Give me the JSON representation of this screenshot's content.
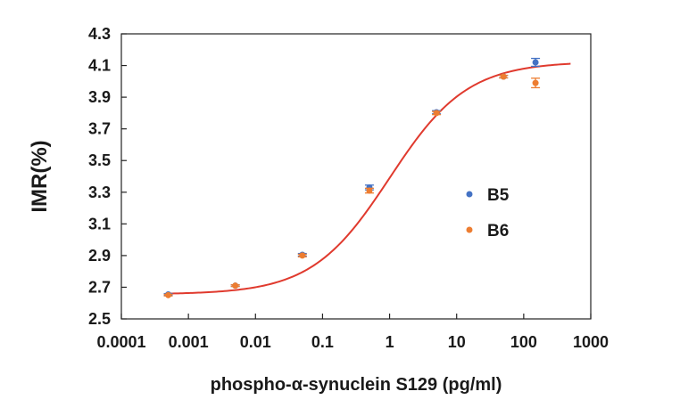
{
  "chart_data": {
    "type": "scatter",
    "title": "",
    "xlabel": "phospho-α-synuclein S129 (pg/ml)",
    "ylabel": "IMR(%)",
    "xscale": "log",
    "xlim": [
      0.0001,
      1000
    ],
    "ylim": [
      2.5,
      4.3
    ],
    "xticks": [
      0.0001,
      0.001,
      0.01,
      0.1,
      1,
      10,
      100,
      1000
    ],
    "xtick_labels": [
      "0.0001",
      "0.001",
      "0.01",
      "0.1",
      "1",
      "10",
      "100",
      "1000"
    ],
    "yticks": [
      2.5,
      2.7,
      2.9,
      3.1,
      3.3,
      3.5,
      3.7,
      3.9,
      4.1,
      4.3
    ],
    "ytick_labels": [
      "2.5",
      "2.7",
      "2.9",
      "3.1",
      "3.3",
      "3.5",
      "3.7",
      "3.9",
      "4.1",
      "4.3"
    ],
    "grid": false,
    "legend_position": "center-right",
    "series": [
      {
        "name": "B5",
        "color": "#4472c4",
        "x": [
          0.0005,
          0.005,
          0.05,
          0.5,
          5,
          50,
          150
        ],
        "y": [
          2.655,
          2.71,
          2.905,
          3.33,
          3.805,
          4.03,
          4.12
        ],
        "yerr": [
          0.005,
          0.005,
          0.008,
          0.015,
          0.01,
          0.008,
          0.025
        ]
      },
      {
        "name": "B6",
        "color": "#ed7d31",
        "x": [
          0.0005,
          0.005,
          0.05,
          0.5,
          5,
          50,
          150
        ],
        "y": [
          2.65,
          2.71,
          2.9,
          3.31,
          3.8,
          4.03,
          3.99
        ],
        "yerr": [
          0.005,
          0.005,
          0.008,
          0.015,
          0.01,
          0.008,
          0.03
        ]
      }
    ],
    "fit_curve": {
      "type": "logistic",
      "color": "#e03a2e",
      "x_range": [
        0.0005,
        500
      ],
      "bottom": 2.655,
      "top": 4.125,
      "ec50": 1.0,
      "hill": 0.75
    }
  }
}
